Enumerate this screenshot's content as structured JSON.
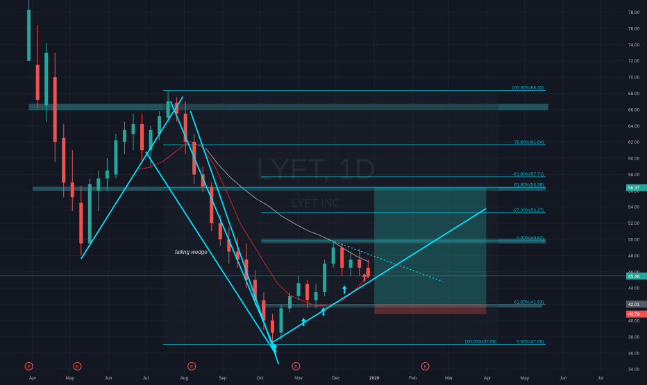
{
  "watermark": {
    "symbol": "LYFT, 1D",
    "name": "LYFT INC"
  },
  "annotation": "falling wedge",
  "colors": {
    "background": "#131722",
    "bull": "#26a69a",
    "bear": "#ef5350",
    "cyan": "#00e5ff",
    "grid": "#1c2130",
    "band": "#2a6e75",
    "ma_red": "#c62828",
    "ma_gray": "#9e9e9e",
    "text": "#b2b5be",
    "fib": "#00bcd4"
  },
  "chart_data": {
    "type": "candlestick",
    "title": "",
    "y_range": [
      33.5,
      79.5
    ],
    "price_ticks": [
      "34.00",
      "36.00",
      "38.00",
      "40.00",
      "42.00",
      "44.00",
      "46.00",
      "48.00",
      "50.00",
      "52.00",
      "54.00",
      "56.00",
      "58.00",
      "60.00",
      "62.00",
      "64.00",
      "66.00",
      "68.00",
      "70.00",
      "72.00",
      "74.00",
      "76.00",
      "78.00"
    ],
    "time_labels": [
      "Apr",
      "May",
      "Jun",
      "Jul",
      "Aug",
      "Sep",
      "Oct",
      "Nov",
      "Dec",
      "2020",
      "Feb",
      "Mar",
      "Apr",
      "May",
      "Jun",
      "Jul"
    ],
    "time_label_dates": [
      "2019-04-01",
      "2019-05-01",
      "2019-06-01",
      "2019-07-01",
      "2019-08-01",
      "2019-09-01",
      "2019-10-01",
      "2019-11-01",
      "2019-12-01",
      "2020-01-01",
      "2020-02-01",
      "2020-03-01",
      "2020-04-01",
      "2020-05-01",
      "2020-06-01",
      "2020-07-01"
    ],
    "earnings_marker": "E",
    "earnings_dates": [
      "2019-03-29",
      "2019-05-07",
      "2019-08-07",
      "2019-10-30",
      "2020-02-11"
    ],
    "price_badges": [
      {
        "label": "56.37",
        "value": 56.37,
        "color": "#26a69a"
      },
      {
        "label": "45.48",
        "value": 45.48,
        "color": "#26a69a"
      },
      {
        "label": "42.01",
        "value": 42.01,
        "color": "#555a66"
      },
      {
        "label": "40.79",
        "value": 40.79,
        "color": "#ef5350"
      }
    ],
    "fib_levels": [
      {
        "label": "100.00%(68.33)",
        "value": 68.33,
        "from": "2019-07-15",
        "to": "2020-05-18"
      },
      {
        "label": "78.60%(61.64)",
        "value": 61.64,
        "from": "2019-07-15",
        "to": "2020-05-18"
      },
      {
        "label": "-61.80%(57.71)",
        "value": 57.71,
        "from": "2019-10-02",
        "to": "2020-05-18"
      },
      {
        "label": "61.80%(56.39)",
        "value": 56.39,
        "from": "2019-07-15",
        "to": "2020-05-18"
      },
      {
        "label": "-27.00%(53.27)",
        "value": 53.27,
        "from": "2019-10-02",
        "to": "2020-05-18"
      },
      {
        "label": "0.00%(49.82)",
        "value": 49.82,
        "from": "2019-10-02",
        "to": "2020-05-18"
      },
      {
        "label": "61.80%(41.93)",
        "value": 41.93,
        "from": "2019-10-02",
        "to": "2020-05-18"
      },
      {
        "label": "100.00%(37.06)",
        "value": 37.06,
        "from": "2019-07-15",
        "to": "2020-04-10"
      },
      {
        "label": "0.00%(37.06)",
        "value": 37.06,
        "from": "2020-04-10",
        "to": "2020-05-18"
      }
    ],
    "resistance_zones": [
      {
        "from": "2019-03-29",
        "to": "2020-05-20",
        "low": 65.9,
        "high": 66.7
      },
      {
        "from": "2019-04-01",
        "to": "2020-05-18",
        "low": 56.0,
        "high": 56.5
      },
      {
        "from": "2019-10-02",
        "to": "2020-05-18",
        "low": 49.5,
        "high": 50.1
      },
      {
        "from": "2019-10-02",
        "to": "2020-05-15",
        "low": 41.6,
        "high": 42.0
      }
    ],
    "position": {
      "from": "2020-01-01",
      "to": "2020-03-31",
      "entry": 42.01,
      "target": 56.37,
      "stop": 40.79
    },
    "lines": [
      {
        "name": "wedge-upper-left",
        "points": [
          [
            "2019-05-10",
            47.6
          ],
          [
            "2019-07-31",
            67.6
          ]
        ]
      },
      {
        "name": "wedge-lower-left",
        "points": [
          [
            "2019-07-01",
            60.8
          ],
          [
            "2019-10-14",
            35.8
          ]
        ]
      },
      {
        "name": "wedge-top-line",
        "points": [
          [
            "2019-08-06",
            65.8
          ],
          [
            "2019-10-16",
            34.6
          ]
        ]
      },
      {
        "name": "wedge-bottom-line",
        "points": [
          [
            "2019-07-21",
            67.0
          ],
          [
            "2019-10-14",
            36.1
          ]
        ]
      },
      {
        "name": "ascending-trendline",
        "points": [
          [
            "2019-10-10",
            37.2
          ],
          [
            "2020-03-31",
            53.8
          ]
        ]
      }
    ],
    "dotted_lines": [
      {
        "name": "descending-resistance",
        "points": [
          [
            "2019-11-25",
            50.0
          ],
          [
            "2020-02-25",
            44.8
          ]
        ]
      }
    ],
    "arrows": [
      {
        "date": "2019-10-13",
        "price": 36.1,
        "color": "#00e5ff"
      },
      {
        "date": "2019-11-05",
        "price": 39.3,
        "color": "#00e5ff"
      },
      {
        "date": "2019-11-21",
        "price": 40.6,
        "color": "#00e5ff"
      },
      {
        "date": "2019-12-08",
        "price": 43.3,
        "color": "#00e5ff"
      },
      {
        "date": "2019-12-24",
        "price": 44.8,
        "color": "#ef5350"
      },
      {
        "date": "2019-12-27",
        "price": 45.3,
        "color": "#ef5350"
      }
    ],
    "ma_slow_label": "",
    "ma_fast_label": "",
    "ma_fast": [
      [
        "2019-06-25",
        58.6
      ],
      [
        "2019-07-05",
        58.9
      ],
      [
        "2019-07-15",
        59.6
      ],
      [
        "2019-07-25",
        60.8
      ],
      [
        "2019-08-05",
        62.1
      ],
      [
        "2019-08-15",
        61.4
      ],
      [
        "2019-08-25",
        59.2
      ],
      [
        "2019-09-05",
        55.6
      ],
      [
        "2019-09-15",
        52.0
      ],
      [
        "2019-09-25",
        49.5
      ],
      [
        "2019-10-05",
        47.0
      ],
      [
        "2019-10-15",
        44.6
      ],
      [
        "2019-10-25",
        43.1
      ],
      [
        "2019-11-05",
        42.4
      ],
      [
        "2019-11-15",
        41.8
      ],
      [
        "2019-11-25",
        41.9
      ],
      [
        "2019-12-05",
        42.3
      ],
      [
        "2019-12-15",
        43.5
      ],
      [
        "2019-12-27",
        45.5
      ]
    ],
    "ma_slow": [
      [
        "2019-08-18",
        61.3
      ],
      [
        "2019-08-28",
        59.3
      ],
      [
        "2019-09-08",
        57.5
      ],
      [
        "2019-09-18",
        56.2
      ],
      [
        "2019-09-28",
        55.0
      ],
      [
        "2019-10-08",
        54.1
      ],
      [
        "2019-10-18",
        52.9
      ],
      [
        "2019-10-28",
        52.0
      ],
      [
        "2019-11-08",
        51.1
      ],
      [
        "2019-11-18",
        50.5
      ],
      [
        "2019-11-28",
        49.8
      ],
      [
        "2019-12-08",
        48.8
      ],
      [
        "2019-12-18",
        47.9
      ],
      [
        "2019-12-28",
        47.2
      ]
    ],
    "candles": [
      {
        "date": "2019-03-29",
        "o": 72.0,
        "h": 88.6,
        "l": 72.0,
        "c": 78.3
      },
      {
        "date": "2019-04-05",
        "o": 71.5,
        "h": 76.4,
        "l": 66.2,
        "c": 67.2
      },
      {
        "date": "2019-04-12",
        "o": 66.5,
        "h": 74.2,
        "l": 64.5,
        "c": 73.0
      },
      {
        "date": "2019-04-19",
        "o": 70.0,
        "h": 73.0,
        "l": 59.5,
        "c": 62.0
      },
      {
        "date": "2019-04-26",
        "o": 62.5,
        "h": 64.2,
        "l": 55.2,
        "c": 57.0
      },
      {
        "date": "2019-05-03",
        "o": 57.0,
        "h": 61.0,
        "l": 53.5,
        "c": 55.2
      },
      {
        "date": "2019-05-10",
        "o": 54.5,
        "h": 56.6,
        "l": 48.0,
        "c": 49.5
      },
      {
        "date": "2019-05-17",
        "o": 49.5,
        "h": 57.5,
        "l": 49.0,
        "c": 56.8
      },
      {
        "date": "2019-05-24",
        "o": 56.0,
        "h": 58.5,
        "l": 53.5,
        "c": 57.5
      },
      {
        "date": "2019-05-31",
        "o": 57.5,
        "h": 60.0,
        "l": 56.0,
        "c": 58.5
      },
      {
        "date": "2019-06-07",
        "o": 58.0,
        "h": 63.0,
        "l": 57.5,
        "c": 62.2
      },
      {
        "date": "2019-06-14",
        "o": 62.0,
        "h": 64.5,
        "l": 60.5,
        "c": 63.5
      },
      {
        "date": "2019-06-21",
        "o": 63.0,
        "h": 65.5,
        "l": 61.0,
        "c": 64.2
      },
      {
        "date": "2019-06-28",
        "o": 64.2,
        "h": 65.5,
        "l": 59.5,
        "c": 61.0
      },
      {
        "date": "2019-07-05",
        "o": 61.0,
        "h": 64.0,
        "l": 59.0,
        "c": 63.5
      },
      {
        "date": "2019-07-12",
        "o": 63.0,
        "h": 65.8,
        "l": 62.2,
        "c": 65.2
      },
      {
        "date": "2019-07-19",
        "o": 65.0,
        "h": 68.3,
        "l": 64.5,
        "c": 67.0
      },
      {
        "date": "2019-07-26",
        "o": 66.8,
        "h": 67.5,
        "l": 64.5,
        "c": 65.5
      },
      {
        "date": "2019-08-02",
        "o": 65.5,
        "h": 67.0,
        "l": 60.5,
        "c": 62.0
      },
      {
        "date": "2019-08-09",
        "o": 62.0,
        "h": 63.0,
        "l": 56.8,
        "c": 58.0
      },
      {
        "date": "2019-08-16",
        "o": 58.0,
        "h": 59.0,
        "l": 55.8,
        "c": 56.5
      },
      {
        "date": "2019-08-23",
        "o": 56.5,
        "h": 57.0,
        "l": 51.0,
        "c": 52.0
      },
      {
        "date": "2019-08-30",
        "o": 52.0,
        "h": 53.0,
        "l": 49.2,
        "c": 50.0
      },
      {
        "date": "2019-09-06",
        "o": 50.0,
        "h": 51.5,
        "l": 47.0,
        "c": 48.5
      },
      {
        "date": "2019-09-13",
        "o": 48.5,
        "h": 50.2,
        "l": 46.5,
        "c": 47.5
      },
      {
        "date": "2019-09-20",
        "o": 47.5,
        "h": 49.5,
        "l": 44.0,
        "c": 45.0
      },
      {
        "date": "2019-09-27",
        "o": 45.0,
        "h": 46.2,
        "l": 41.8,
        "c": 42.5
      },
      {
        "date": "2019-10-04",
        "o": 42.5,
        "h": 43.5,
        "l": 38.8,
        "c": 40.0
      },
      {
        "date": "2019-10-11",
        "o": 40.0,
        "h": 40.8,
        "l": 37.1,
        "c": 38.5
      },
      {
        "date": "2019-10-18",
        "o": 38.5,
        "h": 42.0,
        "l": 37.6,
        "c": 41.5
      },
      {
        "date": "2019-10-25",
        "o": 41.5,
        "h": 43.5,
        "l": 41.0,
        "c": 43.0
      },
      {
        "date": "2019-11-01",
        "o": 43.0,
        "h": 45.5,
        "l": 42.5,
        "c": 44.6
      },
      {
        "date": "2019-11-08",
        "o": 44.5,
        "h": 45.0,
        "l": 41.5,
        "c": 42.5
      },
      {
        "date": "2019-11-15",
        "o": 42.5,
        "h": 44.5,
        "l": 41.5,
        "c": 43.5
      },
      {
        "date": "2019-11-22",
        "o": 43.5,
        "h": 47.5,
        "l": 43.0,
        "c": 47.0
      },
      {
        "date": "2019-11-29",
        "o": 47.0,
        "h": 49.8,
        "l": 46.5,
        "c": 49.0
      },
      {
        "date": "2019-12-06",
        "o": 49.0,
        "h": 49.6,
        "l": 45.5,
        "c": 46.5
      },
      {
        "date": "2019-12-13",
        "o": 46.5,
        "h": 48.5,
        "l": 45.5,
        "c": 47.5
      },
      {
        "date": "2019-12-20",
        "o": 47.5,
        "h": 48.8,
        "l": 45.5,
        "c": 46.5
      },
      {
        "date": "2019-12-27",
        "o": 46.5,
        "h": 47.5,
        "l": 45.2,
        "c": 45.5
      }
    ]
  }
}
